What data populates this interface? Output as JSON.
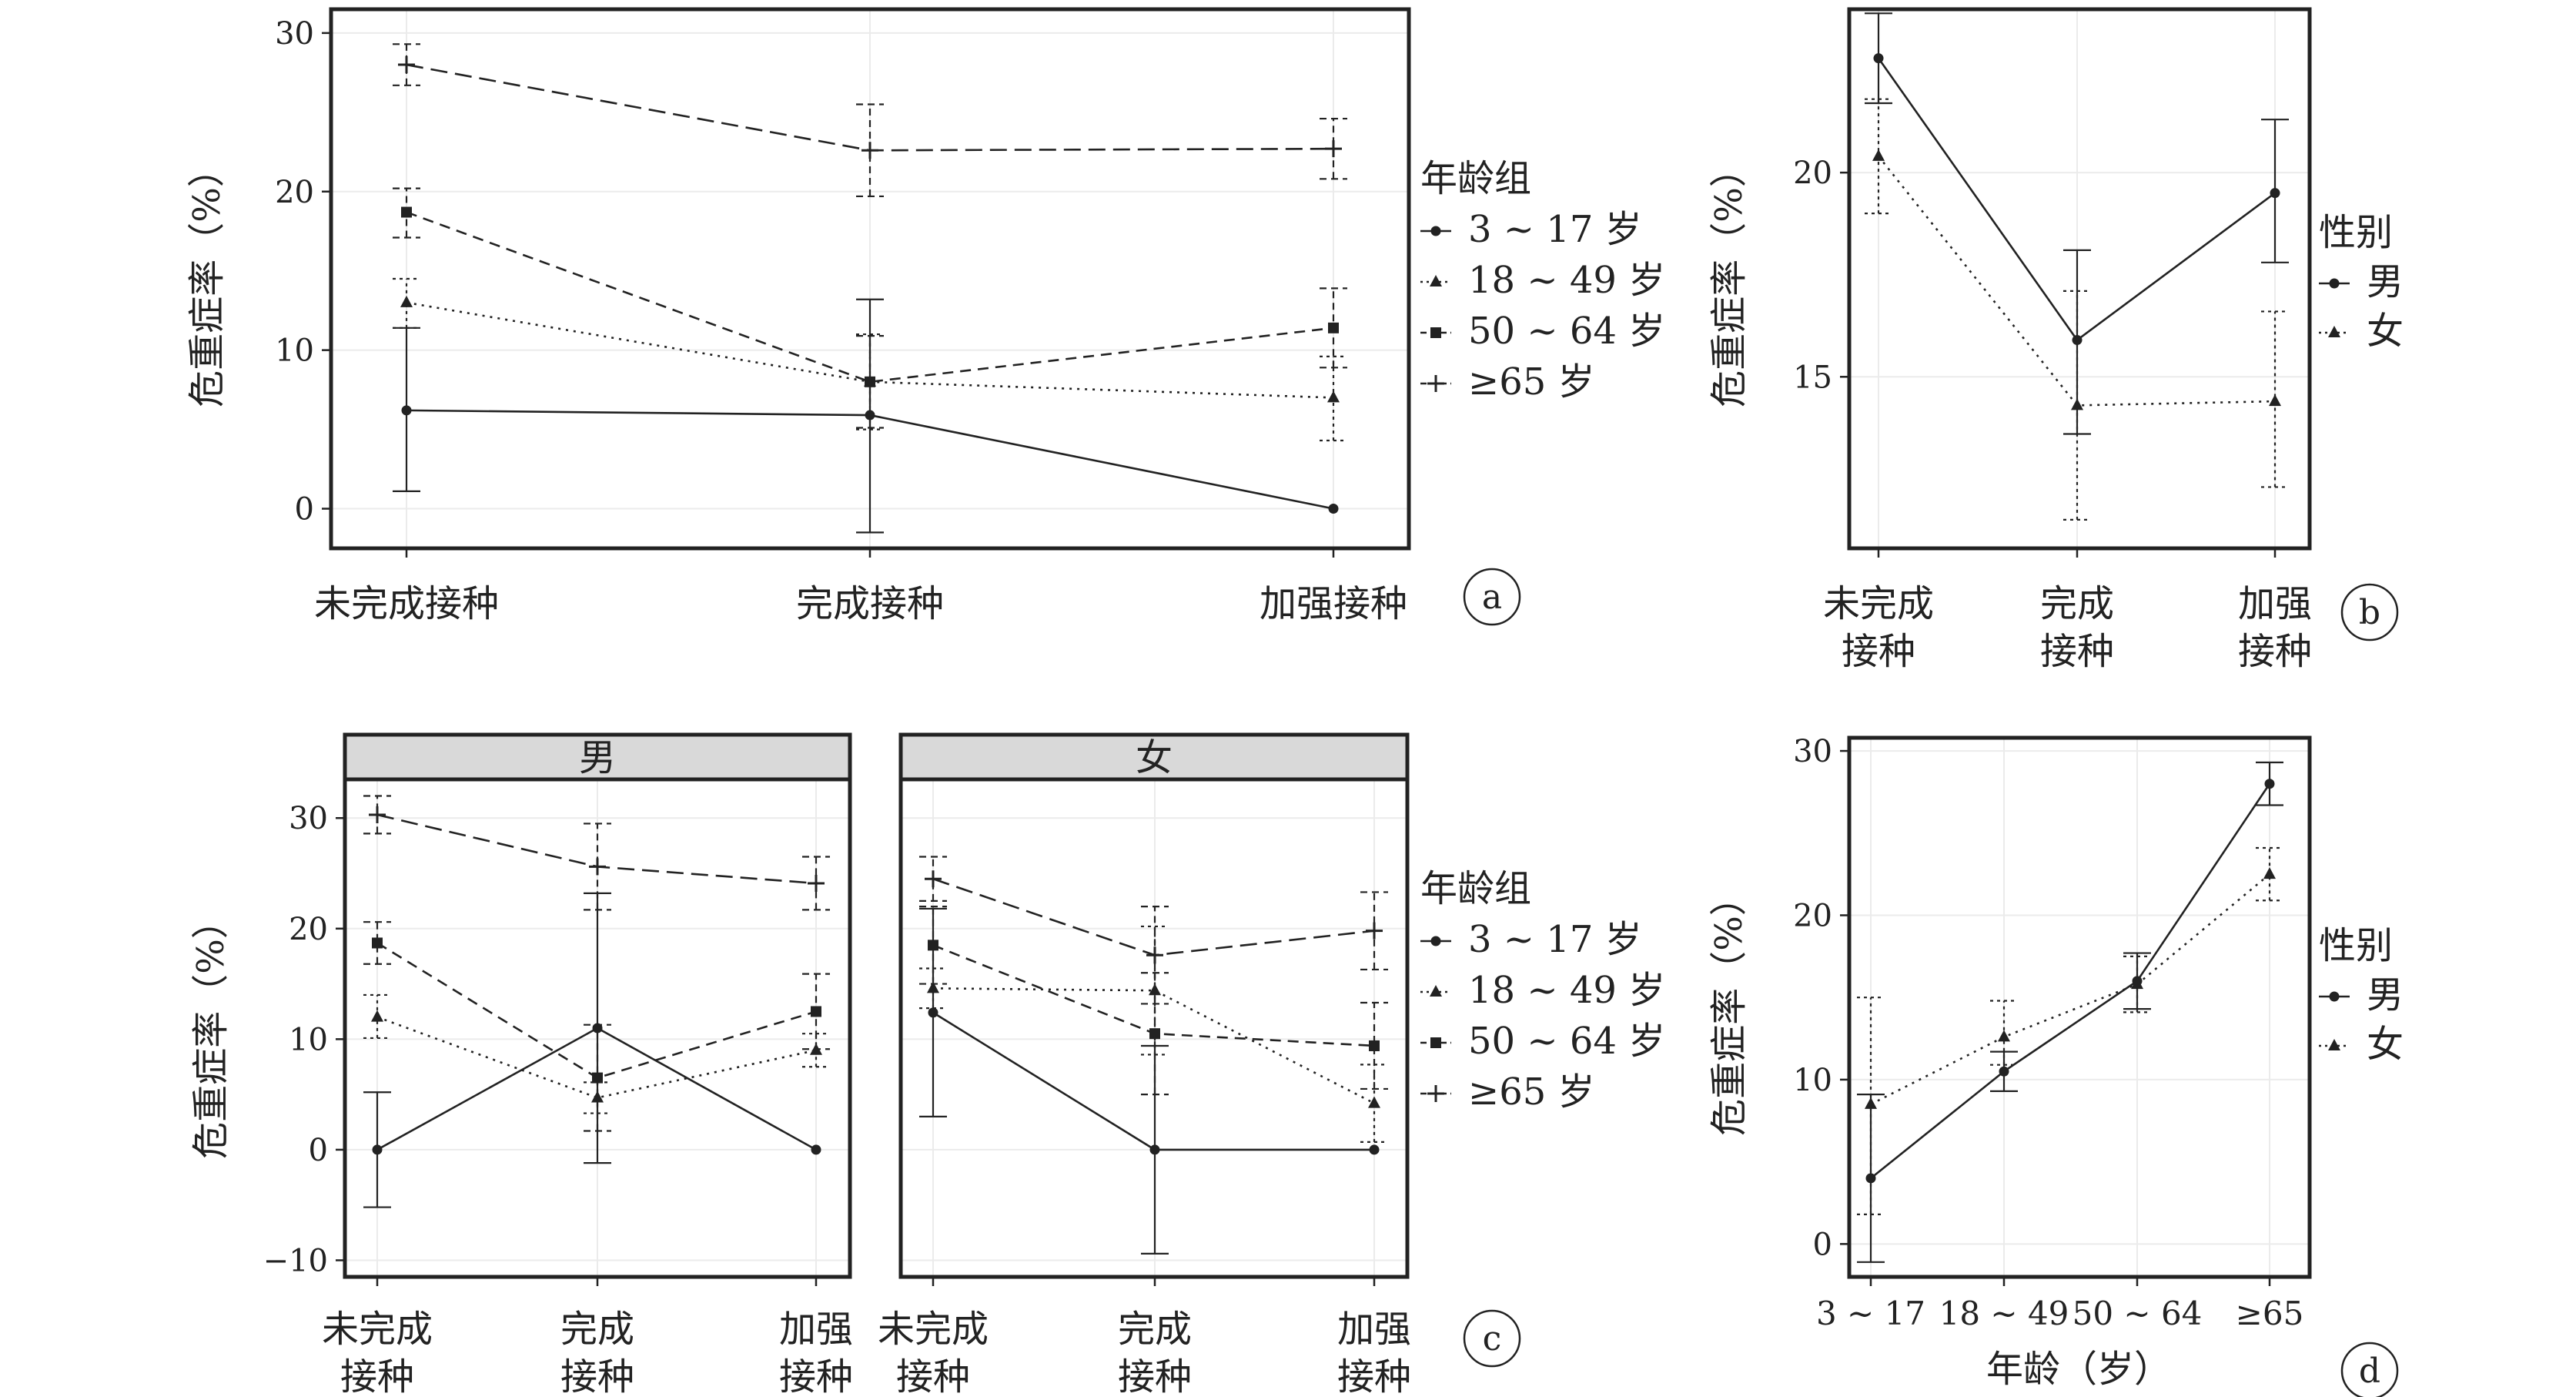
{
  "chart_data": [
    {
      "panel": "a",
      "type": "line",
      "categories": [
        "未完成接种",
        "完成接种",
        "加强接种"
      ],
      "ylabel": "危重症率（%）",
      "ylim": [
        -2.5,
        31.5
      ],
      "yticks": [
        0,
        10,
        20,
        30
      ],
      "legend": {
        "title": "年龄组",
        "position": "right"
      },
      "series": [
        {
          "name": "3 ~ 17 岁",
          "style": "solid",
          "marker": "circle",
          "values": [
            6.2,
            5.9,
            0
          ],
          "lo": [
            1.1,
            -1.5,
            0
          ],
          "hi": [
            11.4,
            13.2,
            0
          ]
        },
        {
          "name": "18 ~ 49 岁",
          "style": "dotted",
          "marker": "triangle",
          "values": [
            13.0,
            8.0,
            7.0
          ],
          "lo": [
            11.4,
            5.0,
            4.3
          ],
          "hi": [
            14.5,
            11.0,
            9.6
          ]
        },
        {
          "name": "50 ~ 64 岁",
          "style": "dashed",
          "marker": "square",
          "values": [
            18.7,
            8.0,
            11.4
          ],
          "lo": [
            17.1,
            5.1,
            8.9
          ],
          "hi": [
            20.2,
            10.9,
            13.9
          ]
        },
        {
          "name": "≥65 岁",
          "style": "longdash",
          "marker": "plus",
          "values": [
            28.0,
            22.6,
            22.7
          ],
          "lo": [
            26.7,
            19.7,
            20.8
          ],
          "hi": [
            29.3,
            25.5,
            24.6
          ]
        }
      ]
    },
    {
      "panel": "b",
      "type": "line",
      "categories": [
        "未完成\n接种",
        "完成\n接种",
        "加强\n接种"
      ],
      "ylabel": "危重症率（%）",
      "ylim": [
        10.8,
        24.0
      ],
      "yticks": [
        15,
        20
      ],
      "legend": {
        "title": "性别",
        "position": "right"
      },
      "series": [
        {
          "name": "男",
          "style": "solid",
          "marker": "circle",
          "values": [
            22.8,
            15.9,
            19.5
          ],
          "lo": [
            21.7,
            13.6,
            17.8
          ],
          "hi": [
            23.9,
            18.1,
            21.3
          ]
        },
        {
          "name": "女",
          "style": "dotted",
          "marker": "triangle",
          "values": [
            20.4,
            14.3,
            14.4
          ],
          "lo": [
            19.0,
            11.5,
            12.3
          ],
          "hi": [
            21.8,
            17.1,
            16.6
          ]
        }
      ]
    },
    {
      "panel": "c",
      "type": "line",
      "facets": [
        "男",
        "女"
      ],
      "categories": [
        "未完成\n接种",
        "完成\n接种",
        "加强\n接种"
      ],
      "ylabel": "危重症率（%）",
      "ylim": [
        -11.5,
        33.5
      ],
      "yticks": [
        -10,
        0,
        10,
        20,
        30
      ],
      "legend": {
        "title": "年龄组",
        "position": "right"
      },
      "series": [
        {
          "name": "3 ~ 17 岁",
          "style": "solid",
          "marker": "circle",
          "values": {
            "男": [
              0,
              11.0,
              0
            ],
            "女": [
              12.4,
              0,
              0
            ]
          },
          "lo": {
            "男": [
              -5.2,
              -1.2,
              0
            ],
            "女": [
              3.0,
              -9.4,
              0
            ]
          },
          "hi": {
            "男": [
              5.2,
              23.2,
              0
            ],
            "女": [
              21.8,
              9.4,
              0
            ]
          }
        },
        {
          "name": "18 ~ 49 岁",
          "style": "dotted",
          "marker": "triangle",
          "values": {
            "男": [
              12.0,
              4.7,
              9.0
            ],
            "女": [
              14.6,
              14.4,
              4.2
            ]
          },
          "lo": {
            "男": [
              10.1,
              3.3,
              7.5
            ],
            "女": [
              12.8,
              8.6,
              0.7
            ]
          },
          "hi": {
            "男": [
              14.0,
              6.1,
              10.5
            ],
            "女": [
              16.4,
              20.2,
              7.7
            ]
          }
        },
        {
          "name": "50 ~ 64 岁",
          "style": "dashed",
          "marker": "square",
          "values": {
            "男": [
              18.7,
              6.5,
              12.5
            ],
            "女": [
              18.5,
              10.5,
              9.4
            ]
          },
          "lo": {
            "男": [
              16.8,
              1.7,
              9.1
            ],
            "女": [
              15.0,
              5.0,
              5.5
            ]
          },
          "hi": {
            "男": [
              20.6,
              11.3,
              15.9
            ],
            "女": [
              22.0,
              16.0,
              13.3
            ]
          }
        },
        {
          "name": "≥65 岁",
          "style": "longdash",
          "marker": "plus",
          "values": {
            "男": [
              30.3,
              25.6,
              24.1
            ],
            "女": [
              24.5,
              17.6,
              19.8
            ]
          },
          "lo": {
            "男": [
              28.6,
              21.7,
              21.7
            ],
            "女": [
              22.5,
              13.2,
              16.3
            ]
          },
          "hi": {
            "男": [
              32.0,
              29.5,
              26.5
            ],
            "女": [
              26.5,
              22.0,
              23.3
            ]
          }
        }
      ]
    },
    {
      "panel": "d",
      "type": "line",
      "categories": [
        "3 ~ 17",
        "18 ~ 49",
        "50 ~ 64",
        "≥65"
      ],
      "xlabel": "年龄（岁）",
      "ylabel": "危重症率（%）",
      "ylim": [
        -2.0,
        30.8
      ],
      "yticks": [
        0,
        10,
        20,
        30
      ],
      "legend": {
        "title": "性别",
        "position": "right"
      },
      "series": [
        {
          "name": "男",
          "style": "solid",
          "marker": "circle",
          "values": [
            4.0,
            10.5,
            16.0,
            28.0
          ],
          "lo": [
            -1.1,
            9.3,
            14.3,
            26.7
          ],
          "hi": [
            9.1,
            11.7,
            17.7,
            29.3
          ]
        },
        {
          "name": "女",
          "style": "dotted",
          "marker": "triangle",
          "values": [
            8.5,
            12.6,
            15.8,
            22.5
          ],
          "lo": [
            1.8,
            10.9,
            14.1,
            20.9
          ],
          "hi": [
            15.0,
            14.8,
            17.5,
            24.1
          ]
        }
      ]
    }
  ],
  "badges": {
    "a": "a",
    "b": "b",
    "c": "c",
    "d": "d"
  }
}
